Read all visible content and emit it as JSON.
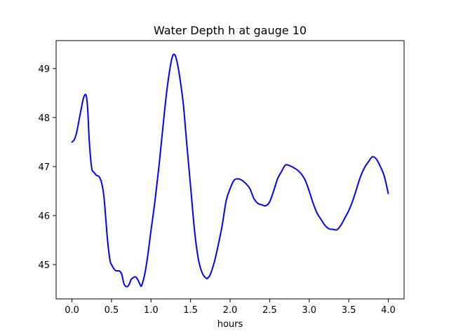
{
  "chart_data": {
    "type": "line",
    "title": "Water Depth h at gauge 10",
    "xlabel": "hours",
    "ylabel": "",
    "xlim": [
      -0.2,
      4.2
    ],
    "ylim": [
      44.3,
      49.57
    ],
    "x_ticks": [
      0.0,
      0.5,
      1.0,
      1.5,
      2.0,
      2.5,
      3.0,
      3.5,
      4.0
    ],
    "x_tick_labels": [
      "0.0",
      "0.5",
      "1.0",
      "1.5",
      "2.0",
      "2.5",
      "3.0",
      "3.5",
      "4.0"
    ],
    "y_ticks": [
      45,
      46,
      47,
      48,
      49
    ],
    "y_tick_labels": [
      "45",
      "46",
      "47",
      "48",
      "49"
    ],
    "grid": false,
    "line_color": "#0000ff",
    "series": [
      {
        "x": [
          0.0,
          0.03,
          0.06,
          0.09,
          0.12,
          0.15,
          0.18,
          0.2,
          0.22,
          0.25,
          0.28,
          0.31,
          0.34,
          0.37,
          0.4,
          0.42,
          0.45,
          0.48,
          0.5,
          0.55,
          0.6,
          0.63,
          0.66,
          0.7,
          0.73,
          0.75,
          0.8,
          0.83,
          0.86,
          0.88,
          0.92,
          0.96,
          1.0,
          1.05,
          1.1,
          1.15,
          1.2,
          1.25,
          1.28,
          1.31,
          1.34,
          1.37,
          1.41,
          1.45,
          1.5,
          1.55,
          1.6,
          1.65,
          1.7,
          1.72,
          1.75,
          1.8,
          1.85,
          1.9,
          1.95,
          2.0,
          2.05,
          2.1,
          2.15,
          2.2,
          2.25,
          2.3,
          2.35,
          2.4,
          2.45,
          2.5,
          2.55,
          2.6,
          2.65,
          2.7,
          2.75,
          2.8,
          2.85,
          2.9,
          2.95,
          3.0,
          3.05,
          3.1,
          3.15,
          3.2,
          3.25,
          3.3,
          3.35,
          3.4,
          3.45,
          3.5,
          3.55,
          3.6,
          3.65,
          3.7,
          3.75,
          3.8,
          3.85,
          3.9,
          3.95,
          4.0
        ],
        "y": [
          47.5,
          47.55,
          47.7,
          47.95,
          48.2,
          48.42,
          48.45,
          48.15,
          47.5,
          46.97,
          46.88,
          46.82,
          46.8,
          46.7,
          46.45,
          46.1,
          45.5,
          45.1,
          45.0,
          44.88,
          44.87,
          44.8,
          44.6,
          44.55,
          44.62,
          44.7,
          44.75,
          44.7,
          44.6,
          44.57,
          44.8,
          45.2,
          45.7,
          46.3,
          47.0,
          47.8,
          48.55,
          49.1,
          49.28,
          49.25,
          49.05,
          48.75,
          48.25,
          47.5,
          46.6,
          45.7,
          45.1,
          44.82,
          44.72,
          44.73,
          44.8,
          45.05,
          45.4,
          45.8,
          46.3,
          46.55,
          46.72,
          46.75,
          46.72,
          46.65,
          46.55,
          46.35,
          46.25,
          46.22,
          46.2,
          46.28,
          46.5,
          46.75,
          46.9,
          47.03,
          47.02,
          46.98,
          46.93,
          46.85,
          46.72,
          46.5,
          46.25,
          46.05,
          45.92,
          45.8,
          45.73,
          45.72,
          45.71,
          45.8,
          45.95,
          46.1,
          46.3,
          46.55,
          46.8,
          46.98,
          47.1,
          47.2,
          47.15,
          47.0,
          46.8,
          46.45
        ]
      }
    ]
  }
}
